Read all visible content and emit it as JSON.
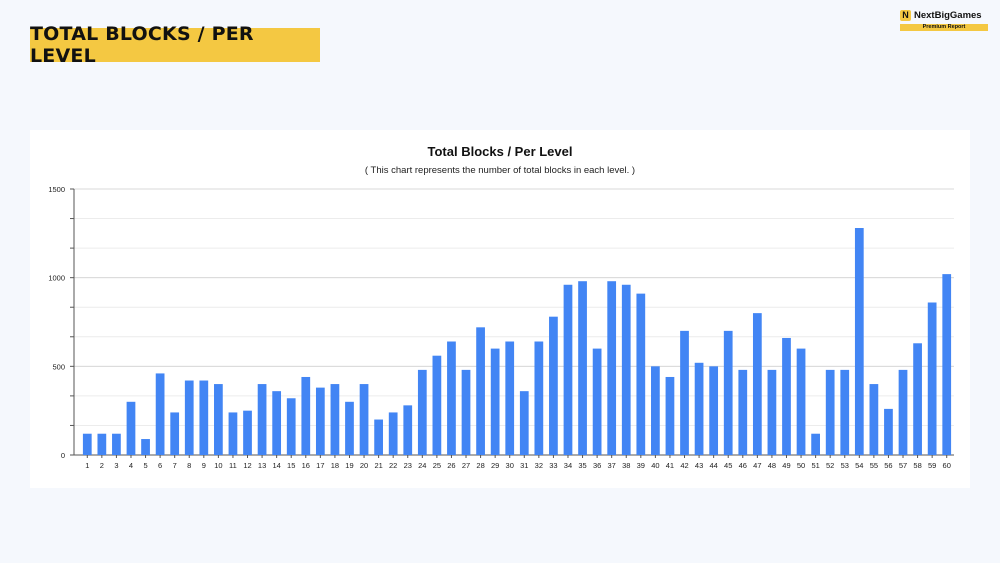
{
  "header": {
    "title": "TOTAL BLOCKS / PER LEVEL"
  },
  "brand": {
    "logo_letter": "N",
    "name": "NextBigGames",
    "tagline": "Premium Report"
  },
  "colors": {
    "accent": "#f4c842",
    "bar": "#4285f4",
    "background": "#f5f8fd"
  },
  "chart_data": {
    "type": "bar",
    "title": "Total Blocks / Per Level",
    "subtitle": "( This chart represents the number of total blocks in each level. )",
    "xlabel": "",
    "ylabel": "",
    "ylim": [
      0,
      1500
    ],
    "yticks": [
      0,
      500,
      1000,
      1500
    ],
    "grid": true,
    "legend": "none",
    "categories": [
      "1",
      "2",
      "3",
      "4",
      "5",
      "6",
      "7",
      "8",
      "9",
      "10",
      "11",
      "12",
      "13",
      "14",
      "15",
      "16",
      "17",
      "18",
      "19",
      "20",
      "21",
      "22",
      "23",
      "24",
      "25",
      "26",
      "27",
      "28",
      "29",
      "30",
      "31",
      "32",
      "33",
      "34",
      "35",
      "36",
      "37",
      "38",
      "39",
      "40",
      "41",
      "42",
      "43",
      "44",
      "45",
      "46",
      "47",
      "48",
      "49",
      "50",
      "51",
      "52",
      "53",
      "54",
      "55",
      "56",
      "57",
      "58",
      "59",
      "60"
    ],
    "values": [
      120,
      120,
      120,
      300,
      90,
      460,
      240,
      420,
      420,
      400,
      240,
      250,
      400,
      360,
      320,
      440,
      380,
      400,
      300,
      400,
      200,
      240,
      280,
      480,
      560,
      640,
      480,
      720,
      600,
      640,
      360,
      640,
      780,
      960,
      980,
      600,
      980,
      960,
      910,
      500,
      440,
      700,
      520,
      500,
      700,
      480,
      800,
      480,
      660,
      600,
      120,
      480,
      480,
      1280,
      400,
      260,
      480,
      630,
      860,
      1020
    ]
  }
}
